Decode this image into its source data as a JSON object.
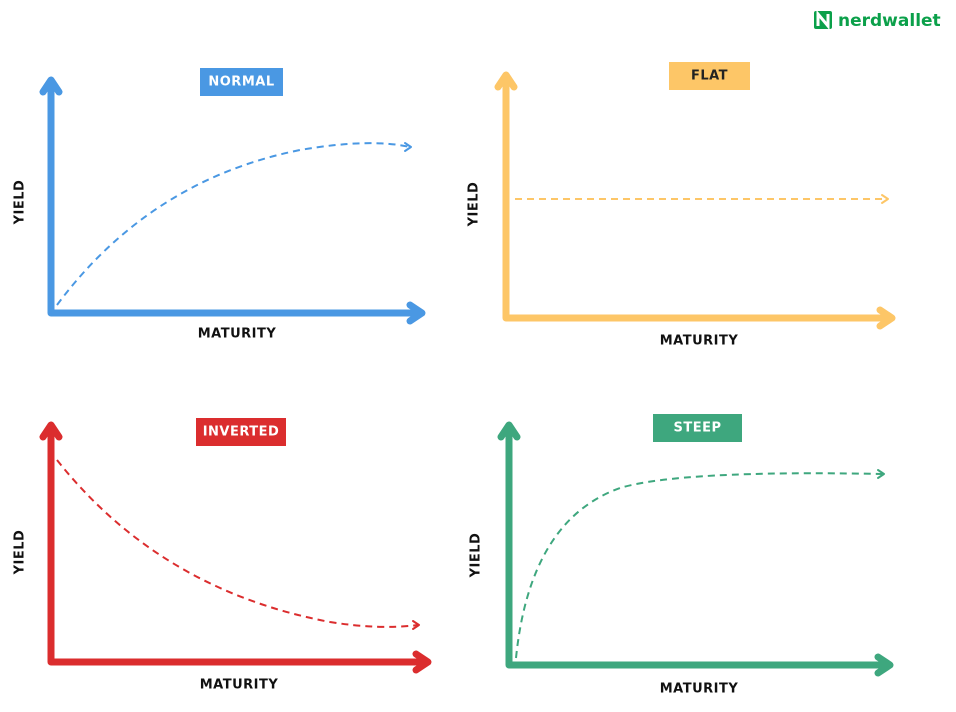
{
  "logo": "nerdwallet",
  "panels": [
    {
      "title": "NORMAL",
      "y_label": "YIELD",
      "x_label": "MATURITY"
    },
    {
      "title": "FLAT",
      "y_label": "YIELD",
      "x_label": "MATURITY"
    },
    {
      "title": "INVERTED",
      "y_label": "YIELD",
      "x_label": "MATURITY"
    },
    {
      "title": "STEEP",
      "y_label": "YIELD",
      "x_label": "MATURITY"
    }
  ]
}
